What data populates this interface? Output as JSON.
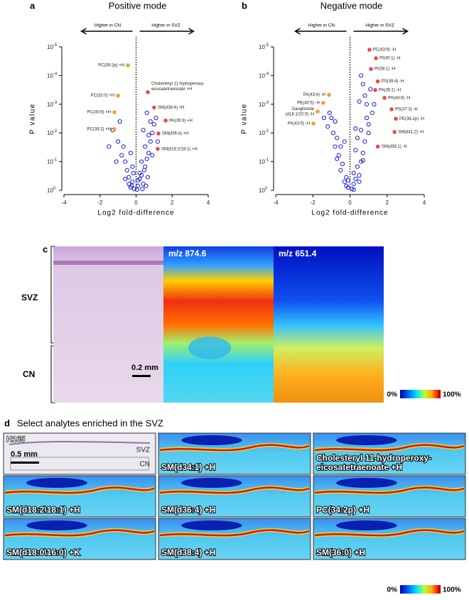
{
  "chart_data": [
    {
      "type": "scatter",
      "panel": "a",
      "title": "Positive mode",
      "xlabel": "Log2 fold-difference",
      "ylabel": "P value",
      "left_arrow": "Higher in CN",
      "right_arrow": "Higher in SVZ",
      "xlim": [
        -4,
        4
      ],
      "xticks": [
        -4,
        -2,
        0,
        2,
        4
      ],
      "ylim": [
        1,
        1e-05
      ],
      "ylog": true,
      "yticks": [
        {
          "value": 1e-05,
          "label": "10",
          "exponent": "-5"
        },
        {
          "value": 0.0001,
          "label": "10",
          "exponent": "-4"
        },
        {
          "value": 0.001,
          "label": "10",
          "exponent": "-3"
        },
        {
          "value": 0.01,
          "label": "10",
          "exponent": "-2"
        },
        {
          "value": 0.1,
          "label": "10",
          "exponent": "-1"
        },
        {
          "value": 1,
          "label": "10",
          "exponent": "0"
        }
      ],
      "series": [
        {
          "color": "#1a1ae6",
          "x": [
            -0.3,
            -0.2,
            -0.1,
            0.1,
            0.2,
            0.3,
            0.4,
            -0.4,
            -0.5,
            0.5,
            0.6,
            -0.6,
            0.7,
            -0.7,
            0.8,
            0.9,
            -0.8,
            1.0,
            -1.0,
            -1.5,
            -1.3,
            -0.9,
            0.3,
            0.5,
            0.6,
            0.2,
            -0.2,
            -0.3,
            0.1,
            0.4,
            0.7,
            0.8,
            1.1,
            0.9,
            -0.4,
            -0.6,
            0.35,
            0.55,
            -0.15,
            0.05,
            -1.1,
            1.2,
            0.45,
            -0.25,
            0.65
          ],
          "values": [
            0.8,
            0.5,
            0.9,
            0.7,
            0.4,
            0.3,
            0.6,
            0.35,
            0.2,
            0.15,
            0.08,
            0.1,
            0.05,
            0.03,
            0.02,
            0.01,
            0.06,
            0.005,
            0.02,
            0.03,
            0.008,
            0.004,
            0.1,
            0.03,
            0.002,
            0.25,
            0.15,
            0.05,
            0.45,
            0.008,
            0.012,
            0.004,
            0.003,
            0.06,
            0.6,
            0.4,
            0.9,
            0.7,
            0.25,
            0.95,
            0.1,
            0.02,
            0.2,
            0.7,
            0.35
          ]
        }
      ],
      "annotations": [
        {
          "lines": [
            "PC(39:2p) +H"
          ],
          "x": -0.45,
          "y": 4.4e-05,
          "color": "#f0a030"
        },
        {
          "lines": [
            "PC(32:0) +H"
          ],
          "x": -1.0,
          "y": 0.0005,
          "color": "#f0a030"
        },
        {
          "lines": [
            "PC(40:6) +H"
          ],
          "x": -1.2,
          "y": 0.0019,
          "color": "#f0a030"
        },
        {
          "lines": [
            "PC(38:2) +H"
          ],
          "x": -1.2,
          "y": 0.0074,
          "color": "#f0a030"
        },
        {
          "lines": [
            "Cholesteryl 11-hydroperoxy-",
            "eicosatetraenoate +H"
          ],
          "x": 0.65,
          "y": 0.00038,
          "color": "#f04848"
        },
        {
          "lines": [
            "SM(d38:4) +H"
          ],
          "x": 1.0,
          "y": 0.0013,
          "color": "#f04848"
        },
        {
          "lines": [
            "PA(39:3) +H"
          ],
          "x": 1.64,
          "y": 0.0037,
          "color": "#f04848"
        },
        {
          "lines": [
            "SM(d36:4) +H"
          ],
          "x": 1.24,
          "y": 0.0105,
          "color": "#f04848"
        },
        {
          "lines": [
            "SM(d18:2/18:1) +H"
          ],
          "x": 1.2,
          "y": 0.036,
          "color": "#f04848"
        }
      ]
    },
    {
      "type": "scatter",
      "panel": "b",
      "title": "Negative mode",
      "xlabel": "Log2 fold-difference",
      "ylabel": "P value",
      "left_arrow": "Higher in CN",
      "right_arrow": "Higher in SVZ",
      "xlim": [
        -4,
        4
      ],
      "xticks": [
        -4,
        -2,
        0,
        2,
        4
      ],
      "ylim": [
        1,
        1e-05
      ],
      "ylog": true,
      "yticks": [
        {
          "value": 1e-05,
          "label": "10",
          "exponent": "-5"
        },
        {
          "value": 0.0001,
          "label": "10",
          "exponent": "-4"
        },
        {
          "value": 0.001,
          "label": "10",
          "exponent": "-3"
        },
        {
          "value": 0.01,
          "label": "10",
          "exponent": "-2"
        },
        {
          "value": 0.1,
          "label": "10",
          "exponent": "-1"
        },
        {
          "value": 1,
          "label": "10",
          "exponent": "0"
        }
      ],
      "series": [
        {
          "color": "#1a1ae6",
          "x": [
            0.1,
            -0.1,
            0.2,
            -0.2,
            0.3,
            -0.3,
            0.5,
            -0.5,
            0.6,
            0.7,
            -0.7,
            -0.8,
            0.8,
            1.0,
            1.2,
            0.9,
            -0.9,
            -1.0,
            -1.2,
            0.4,
            -0.4,
            0.3,
            0.6,
            -0.6,
            0.8,
            1.1,
            1.3,
            0.5,
            0.7,
            -0.3,
            0.2,
            -0.2,
            0.4,
            -0.8,
            -1.1,
            -1.4,
            0.9,
            1.0,
            0.6,
            0.3,
            -0.5,
            -0.7,
            0.5,
            0.2,
            -0.1,
            0.7
          ],
          "values": [
            0.9,
            0.8,
            0.6,
            0.7,
            0.4,
            0.5,
            0.3,
            0.2,
            0.1,
            0.05,
            0.08,
            0.03,
            0.02,
            0.005,
            0.002,
            0.001,
            0.01,
            0.003,
            0.006,
            0.15,
            0.12,
            0.04,
            0.008,
            0.06,
            0.0005,
            0.0003,
            0.001,
            0.0008,
            0.0002,
            0.02,
            0.25,
            0.35,
            0.015,
            0.004,
            0.002,
            0.003,
            0.003,
            0.01,
            0.0001,
            0.007,
            0.03,
            0.015,
            0.5,
            0.95,
            0.45,
            0.09
          ]
        }
      ],
      "annotations": [
        {
          "lines": [
            "PC(43:6) -H"
          ],
          "x": 1.05,
          "y": 1.26e-05,
          "color": "#f04848"
        },
        {
          "lines": [
            "PI(40:1) -H"
          ],
          "x": 1.4,
          "y": 2.5e-05,
          "color": "#f04848"
        },
        {
          "lines": [
            "PI(38:1) -H"
          ],
          "x": 1.13,
          "y": 5.9e-05,
          "color": "#f04848"
        },
        {
          "lines": [
            "PS(39:4) -H"
          ],
          "x": 1.5,
          "y": 0.00016,
          "color": "#f04848"
        },
        {
          "lines": [
            "PA(35:1) -H"
          ],
          "x": 1.36,
          "y": 0.00032,
          "color": "#f04848"
        },
        {
          "lines": [
            "PA(44:8) -H"
          ],
          "x": 1.86,
          "y": 0.0006,
          "color": "#f04848"
        },
        {
          "lines": [
            "PS(37:3) -H"
          ],
          "x": 2.24,
          "y": 0.0015,
          "color": "#f04848"
        },
        {
          "lines": [
            "PE(36:2p) -H"
          ],
          "x": 2.47,
          "y": 0.0032,
          "color": "#f04848"
        },
        {
          "lines": [
            "SM(d41:2) -H"
          ],
          "x": 2.4,
          "y": 0.0093,
          "color": "#f04848"
        },
        {
          "lines": [
            "SM(d39:1) -H"
          ],
          "x": 1.5,
          "y": 0.03,
          "color": "#f04848"
        },
        {
          "lines": [
            "PA(43:4) -H"
          ],
          "x": -1.13,
          "y": 0.00047,
          "color": "#f0a030"
        },
        {
          "lines": [
            "PE(40:5) -H"
          ],
          "x": -1.44,
          "y": 0.0009,
          "color": "#f0a030"
        },
        {
          "lines": [
            "Ganglioside",
            "(d18:1/20:0) -H"
          ],
          "x": -1.74,
          "y": 0.0018,
          "color": "#f0a030"
        },
        {
          "lines": [
            "PA(43:5) -H"
          ],
          "x": -1.97,
          "y": 0.0047,
          "color": "#f0a030"
        }
      ]
    }
  ],
  "panel_c": {
    "label": "c",
    "regions": [
      "SVZ",
      "CN"
    ],
    "scale_bar": "0.2 mm",
    "images": [
      "m/z 874.6",
      "m/z 651.4"
    ],
    "colorbar": [
      "0%",
      "100%"
    ]
  },
  "panel_d": {
    "label": "d",
    "title": "Select analytes enriched in the SVZ",
    "sample": "H165",
    "regions": [
      "SVZ",
      "CN"
    ],
    "scale_bar": "0.5 mm",
    "tiles": [
      [
        "SM(d34:1) +H"
      ],
      [
        "Cholesteryl 11-hydroperoxy-",
        "eicosatetraenoate +H"
      ],
      [
        "SM(d18:2\\18:1) +H"
      ],
      [
        "SM(d36:4) +H"
      ],
      [
        "PC(34:2p) +H"
      ],
      [
        "SM(d18:0\\16:0) +K"
      ],
      [
        "SM(d38:4) +H"
      ],
      [
        "SM(36:0) +H"
      ]
    ],
    "colorbar": [
      "0%",
      "100%"
    ]
  }
}
